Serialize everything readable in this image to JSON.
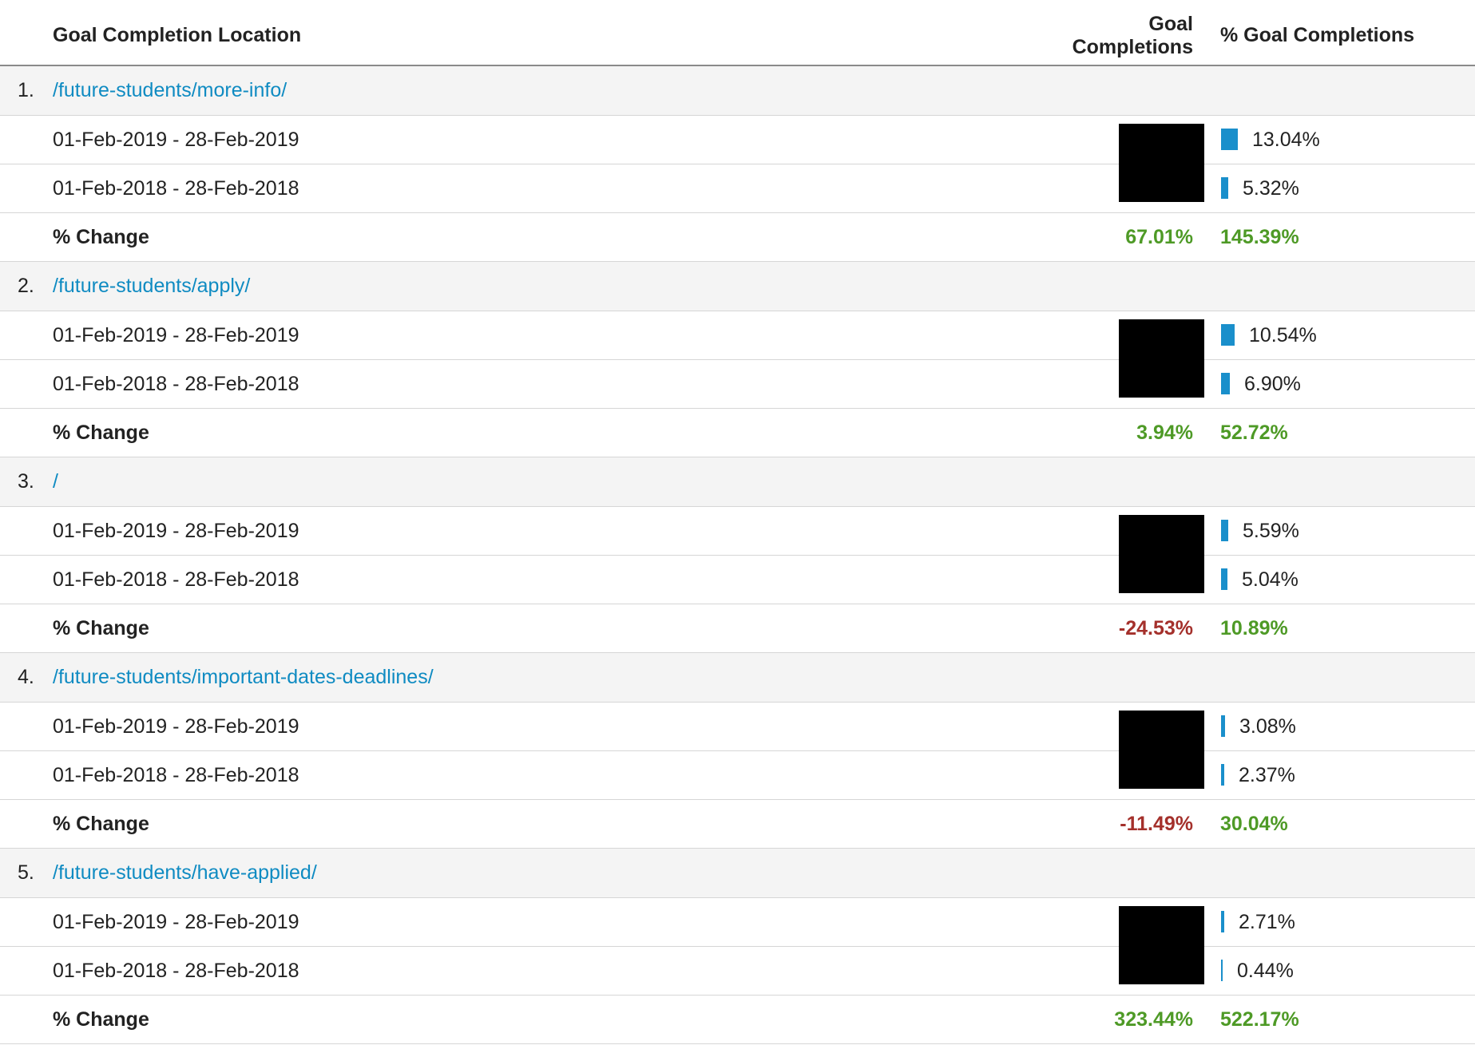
{
  "header": {
    "location_label": "Goal Completion Location",
    "completions_label_line1": "Goal",
    "completions_label_line2": "Completions",
    "pct_completions_label": "% Goal Completions"
  },
  "colors": {
    "link": "#0f8bc2",
    "bar": "#1a8fcb",
    "positive": "#4e9a26",
    "negative": "#a4302b",
    "redaction": "#000000"
  },
  "rows": [
    {
      "index": "1.",
      "location": "/future-students/more-info/",
      "current": {
        "range": "01-Feb-2019 - 28-Feb-2019",
        "pct": "13.04%",
        "pct_value": 13.04
      },
      "previous": {
        "range": "01-Feb-2018 - 28-Feb-2018",
        "pct": "5.32%",
        "pct_value": 5.32
      },
      "change_label": "% Change",
      "completions_change": "67.01%",
      "completions_change_sign": "positive",
      "pct_change": "145.39%",
      "pct_change_sign": "positive"
    },
    {
      "index": "2.",
      "location": "/future-students/apply/",
      "current": {
        "range": "01-Feb-2019 - 28-Feb-2019",
        "pct": "10.54%",
        "pct_value": 10.54
      },
      "previous": {
        "range": "01-Feb-2018 - 28-Feb-2018",
        "pct": "6.90%",
        "pct_value": 6.9
      },
      "change_label": "% Change",
      "completions_change": "3.94%",
      "completions_change_sign": "positive",
      "pct_change": "52.72%",
      "pct_change_sign": "positive"
    },
    {
      "index": "3.",
      "location": "/",
      "current": {
        "range": "01-Feb-2019 - 28-Feb-2019",
        "pct": "5.59%",
        "pct_value": 5.59
      },
      "previous": {
        "range": "01-Feb-2018 - 28-Feb-2018",
        "pct": "5.04%",
        "pct_value": 5.04
      },
      "change_label": "% Change",
      "completions_change": "-24.53%",
      "completions_change_sign": "negative",
      "pct_change": "10.89%",
      "pct_change_sign": "positive"
    },
    {
      "index": "4.",
      "location": "/future-students/important-dates-deadlines/",
      "current": {
        "range": "01-Feb-2019 - 28-Feb-2019",
        "pct": "3.08%",
        "pct_value": 3.08
      },
      "previous": {
        "range": "01-Feb-2018 - 28-Feb-2018",
        "pct": "2.37%",
        "pct_value": 2.37
      },
      "change_label": "% Change",
      "completions_change": "-11.49%",
      "completions_change_sign": "negative",
      "pct_change": "30.04%",
      "pct_change_sign": "positive"
    },
    {
      "index": "5.",
      "location": "/future-students/have-applied/",
      "current": {
        "range": "01-Feb-2019 - 28-Feb-2019",
        "pct": "2.71%",
        "pct_value": 2.71
      },
      "previous": {
        "range": "01-Feb-2018 - 28-Feb-2018",
        "pct": "0.44%",
        "pct_value": 0.44
      },
      "change_label": "% Change",
      "completions_change": "323.44%",
      "completions_change_sign": "positive",
      "pct_change": "522.17%",
      "pct_change_sign": "positive"
    }
  ]
}
